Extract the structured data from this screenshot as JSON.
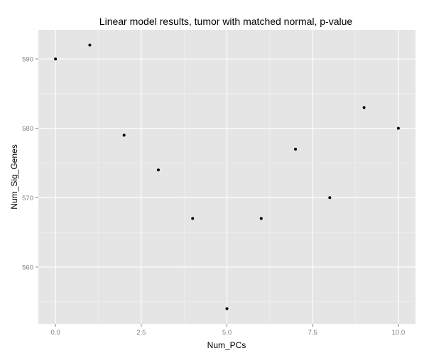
{
  "chart_data": {
    "type": "scatter",
    "title": "Linear model results, tumor with matched normal, p-value",
    "xlabel": "Num_PCs",
    "ylabel": "Num_Sig_Genes",
    "xlim": [
      -0.5,
      10.5
    ],
    "ylim": [
      551.8,
      594.2
    ],
    "x_ticks": [
      0,
      2.5,
      5,
      7.5,
      10
    ],
    "x_tick_labels": [
      "0.0",
      "2.5",
      "5.0",
      "7.5",
      "10.0"
    ],
    "y_ticks": [
      560,
      570,
      580,
      590
    ],
    "y_tick_labels": [
      "560",
      "570",
      "580",
      "590"
    ],
    "grid": true,
    "legend": "none",
    "series": [
      {
        "x": [
          0,
          1,
          2,
          3,
          4,
          5,
          6,
          7,
          8,
          9,
          10
        ],
        "y": [
          590,
          592,
          579,
          574,
          567,
          554,
          567,
          577,
          570,
          583,
          580
        ]
      }
    ],
    "colors": {
      "panel": "#e5e5e5",
      "grid_major": "#ffffff",
      "grid_minor": "#f2f2f2",
      "point": "#000000",
      "tick_text": "#7f7f7f"
    }
  }
}
